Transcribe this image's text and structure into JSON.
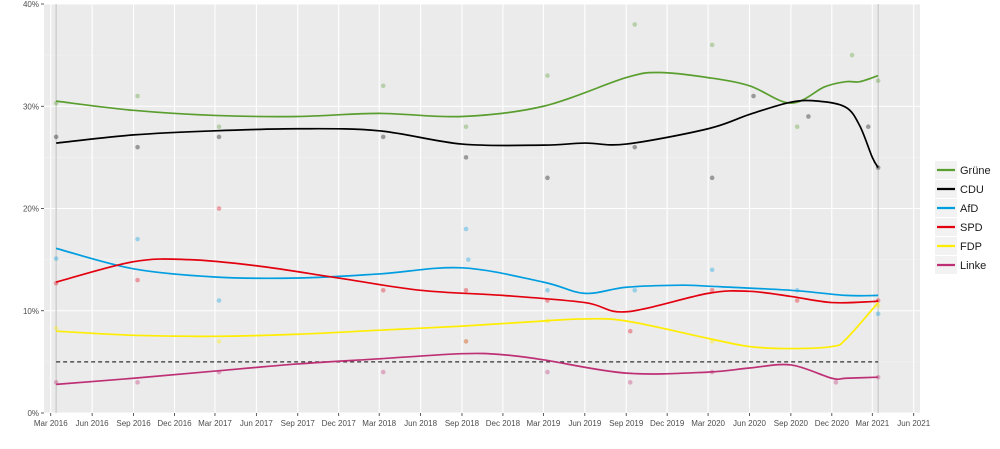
{
  "chart_data": {
    "type": "line",
    "title": "",
    "xlabel": "",
    "ylabel": "",
    "xlim": [
      "2016-02-15",
      "2021-06-15"
    ],
    "ylim": [
      0,
      40
    ],
    "grid": true,
    "legend_position": "right",
    "x_ticks": [
      {
        "date": "2016-03-01",
        "label": "Mar 2016"
      },
      {
        "date": "2016-06-01",
        "label": "Jun 2016"
      },
      {
        "date": "2016-09-01",
        "label": "Sep 2016"
      },
      {
        "date": "2016-12-01",
        "label": "Dec 2016"
      },
      {
        "date": "2017-03-01",
        "label": "Mar 2017"
      },
      {
        "date": "2017-06-01",
        "label": "Jun 2017"
      },
      {
        "date": "2017-09-01",
        "label": "Sep 2017"
      },
      {
        "date": "2017-12-01",
        "label": "Dec 2017"
      },
      {
        "date": "2018-03-01",
        "label": "Mar 2018"
      },
      {
        "date": "2018-06-01",
        "label": "Jun 2018"
      },
      {
        "date": "2018-09-01",
        "label": "Sep 2018"
      },
      {
        "date": "2018-12-01",
        "label": "Dec 2018"
      },
      {
        "date": "2019-03-01",
        "label": "Mar 2019"
      },
      {
        "date": "2019-06-01",
        "label": "Jun 2019"
      },
      {
        "date": "2019-09-01",
        "label": "Sep 2019"
      },
      {
        "date": "2019-12-01",
        "label": "Dec 2019"
      },
      {
        "date": "2020-03-01",
        "label": "Mar 2020"
      },
      {
        "date": "2020-06-01",
        "label": "Jun 2020"
      },
      {
        "date": "2020-09-01",
        "label": "Sep 2020"
      },
      {
        "date": "2020-12-01",
        "label": "Dec 2020"
      },
      {
        "date": "2021-03-01",
        "label": "Mar 2021"
      },
      {
        "date": "2021-06-01",
        "label": "Jun 2021"
      }
    ],
    "y_ticks": [
      {
        "value": 0,
        "label": "0%"
      },
      {
        "value": 10,
        "label": "10%"
      },
      {
        "value": 20,
        "label": "20%"
      },
      {
        "value": 30,
        "label": "30%"
      },
      {
        "value": 40,
        "label": "40%"
      }
    ],
    "vertical_lines": [
      "2016-03-13",
      "2021-03-14"
    ],
    "threshold_line": {
      "value": 5,
      "style": "dashed",
      "color": "#333333"
    },
    "series": [
      {
        "name": "Grüne",
        "color": "#5a9e2f",
        "x": [
          "2016-03-13",
          "2016-09-01",
          "2017-03-01",
          "2017-09-01",
          "2018-03-01",
          "2018-09-01",
          "2019-03-01",
          "2019-09-01",
          "2019-11-15",
          "2020-03-01",
          "2020-06-01",
          "2020-09-01",
          "2020-11-15",
          "2021-01-01",
          "2021-02-01",
          "2021-03-14"
        ],
        "values": [
          30.5,
          29.6,
          29.1,
          29.0,
          29.3,
          29.0,
          30.0,
          32.8,
          33.3,
          32.8,
          32.0,
          30.3,
          31.9,
          32.4,
          32.4,
          33.0
        ],
        "points": [
          {
            "x": "2016-03-13",
            "y": 30.3
          },
          {
            "x": "2016-09-10",
            "y": 31.0
          },
          {
            "x": "2017-03-10",
            "y": 28.0
          },
          {
            "x": "2018-03-10",
            "y": 32.0
          },
          {
            "x": "2018-09-10",
            "y": 28.0
          },
          {
            "x": "2019-03-10",
            "y": 33.0
          },
          {
            "x": "2019-09-20",
            "y": 38.0
          },
          {
            "x": "2020-03-10",
            "y": 36.0
          },
          {
            "x": "2020-09-15",
            "y": 28.0
          },
          {
            "x": "2021-01-15",
            "y": 35.0
          },
          {
            "x": "2021-03-14",
            "y": 32.5
          }
        ]
      },
      {
        "name": "CDU",
        "color": "#000000",
        "x": [
          "2016-03-13",
          "2016-09-01",
          "2017-03-01",
          "2017-09-01",
          "2018-03-01",
          "2018-09-01",
          "2019-03-01",
          "2019-06-01",
          "2019-09-01",
          "2020-03-01",
          "2020-06-01",
          "2020-09-01",
          "2020-11-01",
          "2021-01-01",
          "2021-02-01",
          "2021-03-01",
          "2021-03-14"
        ],
        "values": [
          26.4,
          27.2,
          27.6,
          27.8,
          27.6,
          26.3,
          26.2,
          26.4,
          26.3,
          27.8,
          29.2,
          30.4,
          30.5,
          29.9,
          28.1,
          25.0,
          24.0
        ],
        "points": [
          {
            "x": "2016-03-13",
            "y": 27.0
          },
          {
            "x": "2016-09-10",
            "y": 26.0
          },
          {
            "x": "2017-03-10",
            "y": 27.0
          },
          {
            "x": "2018-03-10",
            "y": 27.0
          },
          {
            "x": "2018-09-10",
            "y": 25.0
          },
          {
            "x": "2019-03-10",
            "y": 23.0
          },
          {
            "x": "2019-09-20",
            "y": 26.0
          },
          {
            "x": "2020-03-10",
            "y": 23.0
          },
          {
            "x": "2020-06-10",
            "y": 31.0
          },
          {
            "x": "2020-10-10",
            "y": 29.0
          },
          {
            "x": "2021-02-20",
            "y": 28.0
          },
          {
            "x": "2021-03-14",
            "y": 24.0
          }
        ]
      },
      {
        "name": "AfD",
        "color": "#009ee0",
        "x": [
          "2016-03-13",
          "2016-09-01",
          "2017-03-01",
          "2017-09-01",
          "2018-03-01",
          "2018-09-01",
          "2019-03-01",
          "2019-06-01",
          "2019-09-01",
          "2020-01-01",
          "2020-03-01",
          "2020-09-01",
          "2021-01-01",
          "2021-03-14"
        ],
        "values": [
          16.1,
          14.1,
          13.3,
          13.2,
          13.6,
          14.2,
          12.8,
          11.7,
          12.3,
          12.5,
          12.4,
          12.0,
          11.5,
          11.5
        ],
        "points": [
          {
            "x": "2016-03-13",
            "y": 15.1
          },
          {
            "x": "2016-09-10",
            "y": 17.0
          },
          {
            "x": "2017-03-10",
            "y": 11.0
          },
          {
            "x": "2018-09-10",
            "y": 18.0
          },
          {
            "x": "2018-09-15",
            "y": 15.0
          },
          {
            "x": "2019-03-10",
            "y": 12.0
          },
          {
            "x": "2019-09-20",
            "y": 12.0
          },
          {
            "x": "2020-03-10",
            "y": 14.0
          },
          {
            "x": "2020-09-15",
            "y": 12.0
          },
          {
            "x": "2021-03-14",
            "y": 9.7
          }
        ]
      },
      {
        "name": "SPD",
        "color": "#e3000f",
        "x": [
          "2016-03-13",
          "2016-09-01",
          "2017-01-01",
          "2017-06-01",
          "2017-12-01",
          "2018-06-01",
          "2018-12-01",
          "2019-06-01",
          "2019-09-01",
          "2020-03-01",
          "2020-06-01",
          "2020-09-01",
          "2020-12-01",
          "2021-03-01",
          "2021-03-14"
        ],
        "values": [
          12.8,
          14.8,
          15.0,
          14.4,
          13.2,
          12.0,
          11.5,
          10.8,
          9.9,
          11.7,
          11.9,
          11.4,
          10.8,
          10.9,
          11.0
        ],
        "points": [
          {
            "x": "2016-03-13",
            "y": 12.7
          },
          {
            "x": "2016-09-10",
            "y": 13.0
          },
          {
            "x": "2017-03-10",
            "y": 20.0
          },
          {
            "x": "2018-03-10",
            "y": 12.0
          },
          {
            "x": "2018-09-10",
            "y": 12.0
          },
          {
            "x": "2019-03-10",
            "y": 11.0
          },
          {
            "x": "2019-09-10",
            "y": 8.0
          },
          {
            "x": "2020-03-10",
            "y": 12.0
          },
          {
            "x": "2020-09-15",
            "y": 11.0
          },
          {
            "x": "2021-03-14",
            "y": 11.0
          }
        ]
      },
      {
        "name": "FDP",
        "color": "#ffed00",
        "x": [
          "2016-03-13",
          "2016-09-01",
          "2017-03-01",
          "2017-09-01",
          "2018-03-01",
          "2018-09-01",
          "2019-03-01",
          "2019-06-01",
          "2019-09-01",
          "2020-03-01",
          "2020-06-01",
          "2020-09-01",
          "2020-12-01",
          "2021-01-01",
          "2021-03-14"
        ],
        "values": [
          8.0,
          7.6,
          7.5,
          7.7,
          8.1,
          8.5,
          9.0,
          9.2,
          9.0,
          7.3,
          6.5,
          6.3,
          6.5,
          7.2,
          10.8
        ],
        "points": [
          {
            "x": "2016-03-13",
            "y": 8.3
          },
          {
            "x": "2017-03-10",
            "y": 7.0
          },
          {
            "x": "2018-09-10",
            "y": 7.0
          },
          {
            "x": "2019-03-10",
            "y": 9.0
          },
          {
            "x": "2020-03-10",
            "y": 7.0
          },
          {
            "x": "2021-03-14",
            "y": 10.5
          }
        ]
      },
      {
        "name": "Linke",
        "color": "#be3075",
        "x": [
          "2016-03-13",
          "2016-09-01",
          "2017-03-01",
          "2017-09-01",
          "2018-03-01",
          "2018-09-01",
          "2018-12-01",
          "2019-03-01",
          "2019-09-01",
          "2020-03-01",
          "2020-06-01",
          "2020-09-01",
          "2020-12-01",
          "2021-01-01",
          "2021-03-14"
        ],
        "values": [
          2.8,
          3.4,
          4.1,
          4.8,
          5.3,
          5.8,
          5.7,
          5.2,
          3.9,
          4.0,
          4.4,
          4.7,
          3.4,
          3.4,
          3.5
        ],
        "points": [
          {
            "x": "2016-03-13",
            "y": 3.0
          },
          {
            "x": "2016-09-10",
            "y": 3.0
          },
          {
            "x": "2017-03-10",
            "y": 4.0
          },
          {
            "x": "2018-03-10",
            "y": 4.0
          },
          {
            "x": "2018-09-10",
            "y": 7.0
          },
          {
            "x": "2019-03-10",
            "y": 4.0
          },
          {
            "x": "2019-09-10",
            "y": 3.0
          },
          {
            "x": "2020-03-10",
            "y": 4.0
          },
          {
            "x": "2020-12-10",
            "y": 3.0
          },
          {
            "x": "2021-03-14",
            "y": 3.5
          }
        ]
      }
    ]
  }
}
